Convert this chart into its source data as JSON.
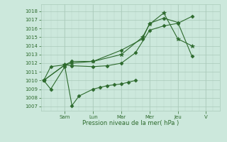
{
  "xlabel": "Pression niveau de la mer( hPa )",
  "ylim": [
    1006.5,
    1018.8
  ],
  "yticks": [
    1007,
    1008,
    1009,
    1010,
    1011,
    1012,
    1013,
    1014,
    1015,
    1016,
    1017,
    1018
  ],
  "xlim": [
    -0.2,
    12.5
  ],
  "xtick_positions": [
    1.5,
    3.5,
    5.5,
    7.5,
    9.5,
    11.5
  ],
  "day_labels": [
    "Sam",
    "Lun",
    "Mar",
    "Mer",
    "Jeu",
    "V"
  ],
  "line_color": "#2d6a2d",
  "bg_color": "#cce8dc",
  "grid_color": "#aacaba",
  "series": [
    {
      "x": [
        0,
        0.5,
        1.5,
        2.0,
        2.5,
        3.5,
        4.0,
        4.5,
        5.0,
        5.5,
        6.0,
        6.5
      ],
      "y": [
        1010.0,
        1009.0,
        1011.6,
        1007.1,
        1008.2,
        1009.0,
        1009.2,
        1009.4,
        1009.5,
        1009.6,
        1009.8,
        1010.0
      ],
      "marker": "D",
      "ms": 2.5
    },
    {
      "x": [
        0,
        0.5,
        1.5,
        2.0,
        3.5,
        4.5,
        5.5,
        6.5,
        7.5,
        8.5,
        9.5,
        10.5
      ],
      "y": [
        1010.0,
        1011.6,
        1011.8,
        1011.7,
        1011.6,
        1011.7,
        1012.0,
        1013.2,
        1015.8,
        1016.3,
        1016.6,
        1017.4
      ],
      "marker": "D",
      "ms": 2.5
    },
    {
      "x": [
        0,
        1.5,
        2.0,
        3.5,
        5.5,
        7.0,
        7.5,
        8.5,
        9.5,
        10.5
      ],
      "y": [
        1010.0,
        1011.8,
        1012.0,
        1012.2,
        1013.0,
        1015.0,
        1016.5,
        1017.8,
        1014.8,
        1014.0
      ],
      "marker": "*",
      "ms": 4
    },
    {
      "x": [
        0,
        1.5,
        2.0,
        3.5,
        5.5,
        7.0,
        7.5,
        8.5,
        9.5,
        10.5
      ],
      "y": [
        1010.0,
        1011.8,
        1012.2,
        1012.2,
        1013.5,
        1014.8,
        1016.6,
        1017.2,
        1016.7,
        1012.8
      ],
      "marker": "D",
      "ms": 2.5
    }
  ]
}
